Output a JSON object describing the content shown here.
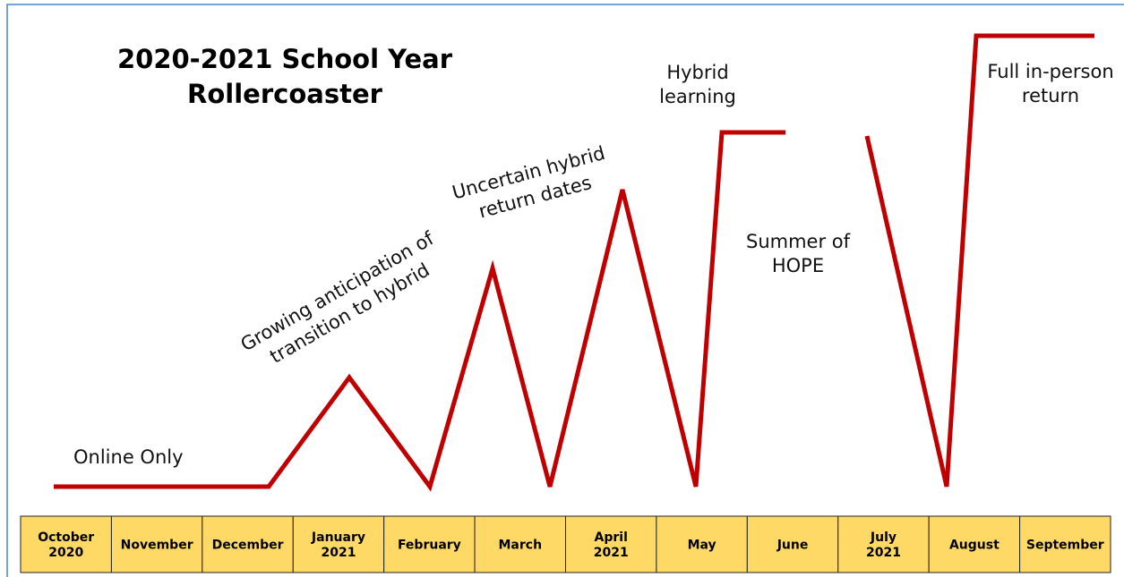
{
  "title": {
    "lines": [
      "2020-2021 School Year",
      "Rollercoaster"
    ]
  },
  "annotations": [
    {
      "lines": [
        "Online Only"
      ]
    },
    {
      "lines": [
        "Growing anticipation of",
        "transition to hybrid"
      ]
    },
    {
      "lines": [
        "Uncertain hybrid",
        "return dates"
      ]
    },
    {
      "lines": [
        "Hybrid",
        "learning"
      ]
    },
    {
      "lines": [
        "Summer of",
        "HOPE"
      ]
    },
    {
      "lines": [
        "Full in-person",
        "return"
      ]
    }
  ],
  "months": [
    {
      "lines": [
        "October",
        "2020"
      ]
    },
    {
      "lines": [
        "November"
      ]
    },
    {
      "lines": [
        "December"
      ]
    },
    {
      "lines": [
        "January",
        "2021"
      ]
    },
    {
      "lines": [
        "February"
      ]
    },
    {
      "lines": [
        "March"
      ]
    },
    {
      "lines": [
        "April",
        "2021"
      ]
    },
    {
      "lines": [
        "May"
      ]
    },
    {
      "lines": [
        "June"
      ]
    },
    {
      "lines": [
        "July",
        "2021"
      ]
    },
    {
      "lines": [
        "August"
      ]
    },
    {
      "lines": [
        "September"
      ]
    }
  ]
}
